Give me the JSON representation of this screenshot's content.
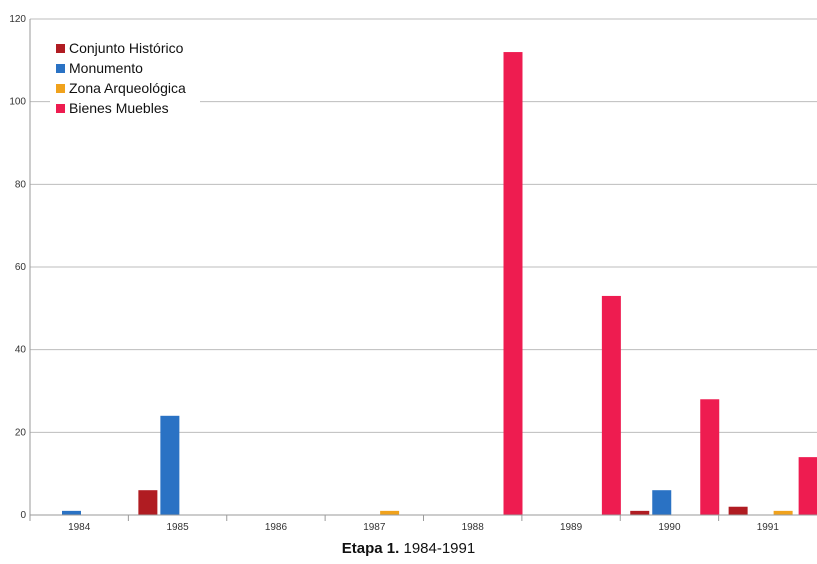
{
  "caption": {
    "bold": "Etapa 1.",
    "rest": " 1984-1991"
  },
  "chart_data": {
    "type": "bar",
    "categories": [
      "1984",
      "1985",
      "1986",
      "1987",
      "1988",
      "1989",
      "1990",
      "1991"
    ],
    "series": [
      {
        "name": "Conjunto Histórico",
        "color": "#b01c22",
        "values": [
          0,
          6,
          0,
          0,
          0,
          0,
          1,
          2
        ]
      },
      {
        "name": "Monumento",
        "color": "#2a72c4",
        "values": [
          1,
          24,
          0,
          0,
          0,
          0,
          6,
          0
        ]
      },
      {
        "name": "Zona Arqueológica",
        "color": "#f0a21c",
        "values": [
          0,
          0,
          0,
          1,
          0,
          0,
          0,
          1
        ]
      },
      {
        "name": "Bienes Muebles",
        "color": "#ee1c50",
        "values": [
          0,
          0,
          0,
          0,
          112,
          53,
          28,
          14
        ]
      }
    ],
    "ylim": [
      0,
      120
    ],
    "yticks": [
      "0",
      "20",
      "40",
      "60",
      "80",
      "100",
      "120"
    ],
    "grid": true,
    "legend": "top-left"
  }
}
